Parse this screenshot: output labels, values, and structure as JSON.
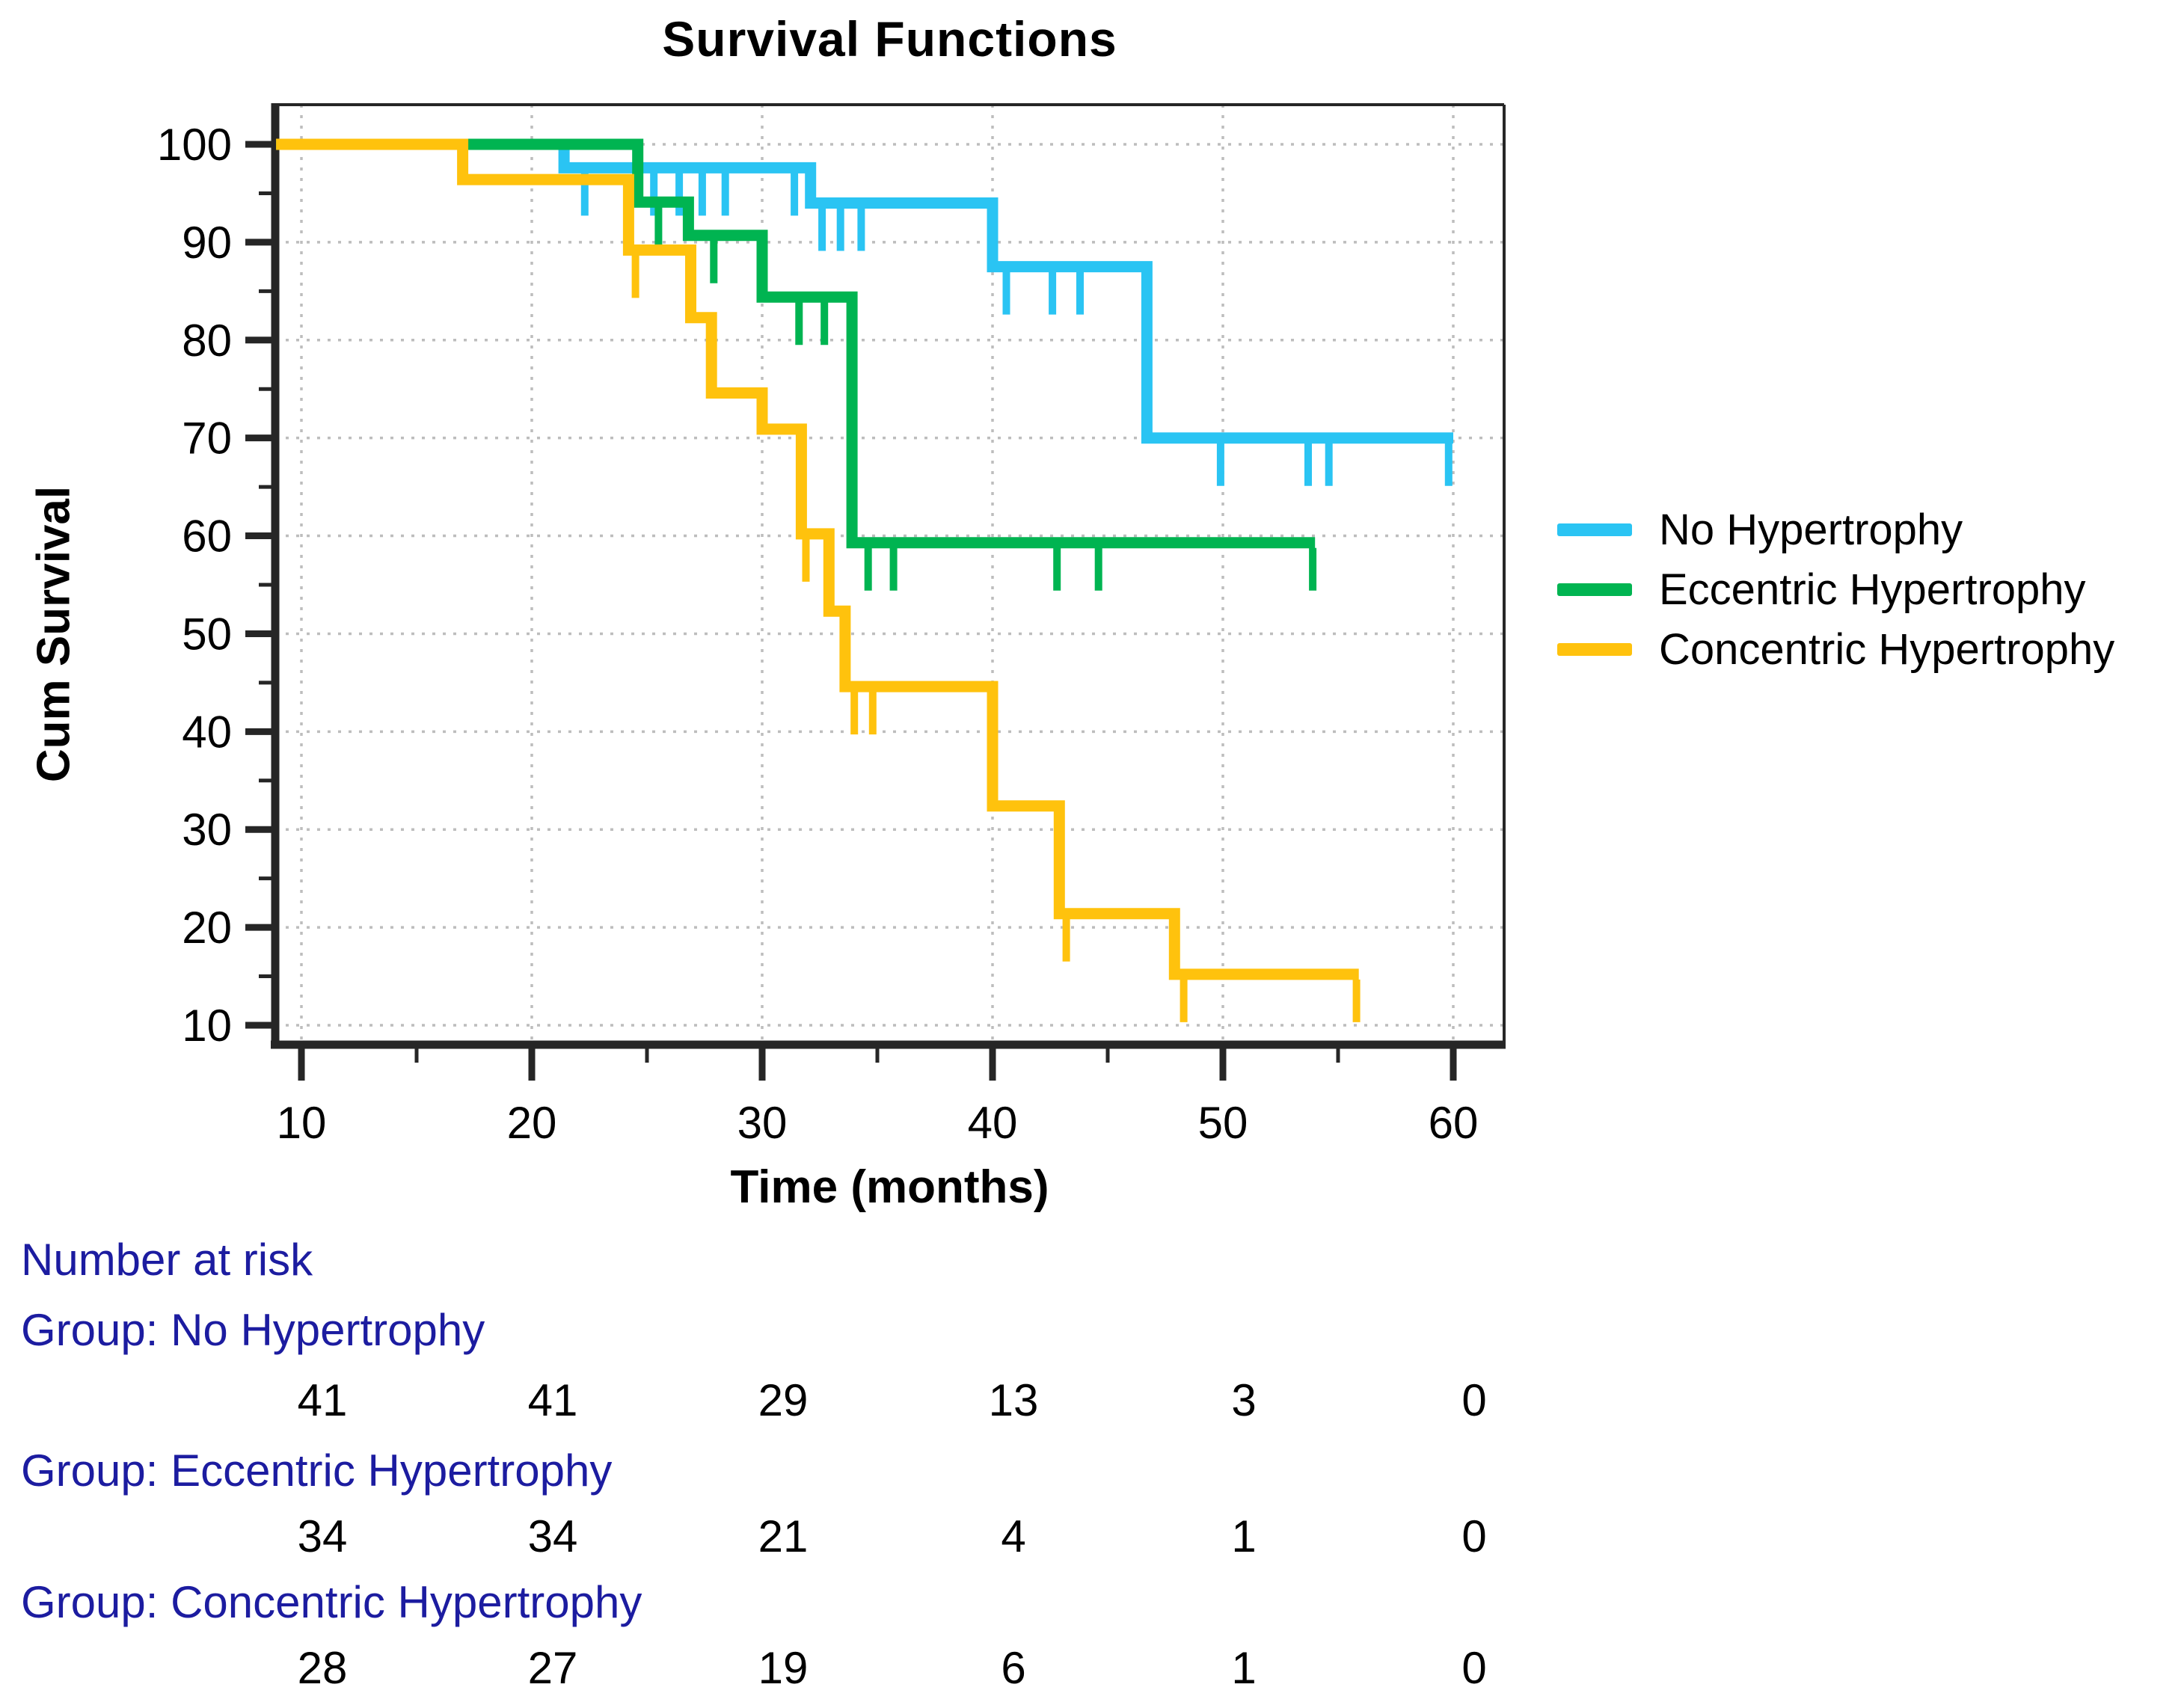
{
  "chart_data": {
    "type": "line",
    "subtype": "kaplan-meier-step-function",
    "title": "Survival Functions",
    "xlabel": "Time (months)",
    "ylabel": "Cum Survival",
    "xlim": [
      10,
      60
    ],
    "ylim": [
      10,
      100
    ],
    "x_ticks": [
      10,
      20,
      30,
      40,
      50,
      60
    ],
    "x_minor_ticks": [
      15,
      25,
      35,
      45,
      55
    ],
    "y_ticks": [
      100,
      90,
      80,
      70,
      60,
      50,
      40,
      30,
      20,
      10
    ],
    "y_minor_ticks": [
      95,
      85,
      75,
      65,
      55,
      45,
      35,
      25,
      15
    ],
    "grid": true,
    "grid_style": "dotted",
    "legend_position": "right",
    "colors": {
      "axis": "#262626",
      "grid": "#BDBDBD",
      "tick_label": "#000000",
      "risk_label": "#1C1CA0",
      "risk_count": "#000000"
    },
    "series": [
      {
        "name": "No Hypertrophy",
        "color": "#2AC4F3",
        "steps": [
          [
            8.9,
            100
          ],
          [
            21.4,
            100
          ],
          [
            21.4,
            97.6
          ],
          [
            32.1,
            97.6
          ],
          [
            32.1,
            94.0
          ],
          [
            40.0,
            94.0
          ],
          [
            40.0,
            87.5
          ],
          [
            46.7,
            87.5
          ],
          [
            46.7,
            70.0
          ],
          [
            60.0,
            70.0
          ]
        ],
        "censor_marks": [
          [
            22.3,
            97.6
          ],
          [
            25.3,
            97.6
          ],
          [
            26.4,
            97.6
          ],
          [
            27.4,
            97.6
          ],
          [
            28.4,
            97.6
          ],
          [
            31.4,
            97.6
          ],
          [
            32.6,
            94.0
          ],
          [
            33.4,
            94.0
          ],
          [
            34.3,
            94.0
          ],
          [
            40.6,
            87.5
          ],
          [
            42.6,
            87.5
          ],
          [
            43.8,
            87.5
          ],
          [
            49.9,
            70.0
          ],
          [
            53.7,
            70.0
          ],
          [
            54.6,
            70.0
          ],
          [
            59.8,
            70.0
          ]
        ]
      },
      {
        "name": "Eccentric Hypertrophy",
        "color": "#00B451",
        "steps": [
          [
            8.9,
            100
          ],
          [
            24.6,
            100
          ],
          [
            24.6,
            94.1
          ],
          [
            26.8,
            94.1
          ],
          [
            26.8,
            90.7
          ],
          [
            30.0,
            90.7
          ],
          [
            30.0,
            84.4
          ],
          [
            33.9,
            84.4
          ],
          [
            33.9,
            59.3
          ],
          [
            54.0,
            59.3
          ]
        ],
        "censor_marks": [
          [
            25.5,
            94.1
          ],
          [
            27.9,
            90.7
          ],
          [
            31.6,
            84.4
          ],
          [
            32.7,
            84.4
          ],
          [
            34.6,
            59.3
          ],
          [
            35.7,
            59.3
          ],
          [
            42.8,
            59.3
          ],
          [
            44.6,
            59.3
          ],
          [
            53.9,
            59.3
          ]
        ]
      },
      {
        "name": "Concentric Hypertrophy",
        "color": "#FFC20D",
        "steps": [
          [
            8.9,
            100
          ],
          [
            17.0,
            100
          ],
          [
            17.0,
            96.4
          ],
          [
            24.2,
            96.4
          ],
          [
            24.2,
            89.2
          ],
          [
            26.9,
            89.2
          ],
          [
            26.9,
            82.3
          ],
          [
            27.8,
            82.3
          ],
          [
            27.8,
            74.6
          ],
          [
            30.0,
            74.6
          ],
          [
            30.0,
            70.9
          ],
          [
            31.7,
            70.9
          ],
          [
            31.7,
            60.2
          ],
          [
            32.9,
            60.2
          ],
          [
            32.9,
            52.3
          ],
          [
            33.6,
            52.3
          ],
          [
            33.6,
            44.6
          ],
          [
            40.0,
            44.6
          ],
          [
            40.0,
            32.4
          ],
          [
            42.9,
            32.4
          ],
          [
            42.9,
            21.4
          ],
          [
            47.9,
            21.4
          ],
          [
            47.9,
            15.2
          ],
          [
            55.9,
            15.2
          ]
        ],
        "censor_marks": [
          [
            24.5,
            89.2
          ],
          [
            31.9,
            60.2
          ],
          [
            34.0,
            44.6
          ],
          [
            34.8,
            44.6
          ],
          [
            43.2,
            21.4
          ],
          [
            48.3,
            15.2
          ],
          [
            55.8,
            15.2
          ]
        ]
      }
    ],
    "number_at_risk": {
      "heading": "Number at risk",
      "time_points": [
        10,
        20,
        30,
        40,
        50,
        60
      ],
      "groups": [
        {
          "label": "Group: No Hypertrophy",
          "counts": [
            41,
            41,
            29,
            13,
            3,
            0
          ]
        },
        {
          "label": "Group: Eccentric Hypertrophy",
          "counts": [
            34,
            34,
            21,
            4,
            1,
            0
          ]
        },
        {
          "label": "Group: Concentric Hypertrophy",
          "counts": [
            28,
            27,
            19,
            6,
            1,
            0
          ]
        }
      ]
    }
  }
}
